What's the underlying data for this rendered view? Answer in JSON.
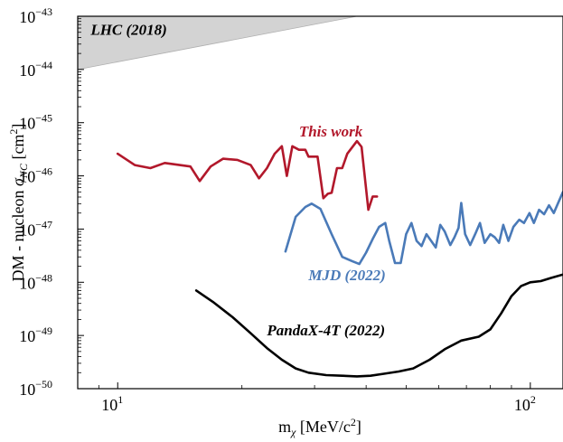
{
  "chart_data": {
    "type": "line",
    "xscale": "log",
    "yscale": "log",
    "xlim": [
      8,
      120
    ],
    "ylim": [
      1e-50,
      1e-43
    ],
    "xlabel": "m_χ [MeV/c²]",
    "ylabel": "DM - nucleon σ_NC [cm²]",
    "x_ticks": [
      {
        "value": 10,
        "base": "10",
        "exp": "1"
      },
      {
        "value": 100,
        "base": "10",
        "exp": "2"
      }
    ],
    "y_ticks": [
      {
        "value": 1e-50,
        "base": "10",
        "exp": "−50"
      },
      {
        "value": 1e-49,
        "base": "10",
        "exp": "−49"
      },
      {
        "value": 1e-48,
        "base": "10",
        "exp": "−48"
      },
      {
        "value": 1e-47,
        "base": "10",
        "exp": "−47"
      },
      {
        "value": 1e-46,
        "base": "10",
        "exp": "−46"
      },
      {
        "value": 1e-45,
        "base": "10",
        "exp": "−45"
      },
      {
        "value": 1e-44,
        "base": "10",
        "exp": "−44"
      },
      {
        "value": 1e-43,
        "base": "10",
        "exp": "−43"
      }
    ],
    "regions": [
      {
        "name": "LHC (2018)",
        "color": "#d3d3d3",
        "boundary": [
          [
            8,
            1e-44
          ],
          [
            38,
            1e-43
          ]
        ]
      }
    ],
    "series": [
      {
        "name": "This work",
        "color": "#b2182b",
        "points": [
          [
            10.0,
            2.6e-46
          ],
          [
            11.0,
            1.6e-46
          ],
          [
            12.0,
            1.4e-46
          ],
          [
            13.0,
            1.75e-46
          ],
          [
            15.0,
            1.5e-46
          ],
          [
            15.8,
            8e-47
          ],
          [
            16.8,
            1.5e-46
          ],
          [
            18.0,
            2.1e-46
          ],
          [
            19.5,
            2e-46
          ],
          [
            21.0,
            1.6e-46
          ],
          [
            22.0,
            9e-47
          ],
          [
            23.0,
            1.4e-46
          ],
          [
            24.0,
            2.6e-46
          ],
          [
            25.0,
            3.6e-46
          ],
          [
            25.7,
            1e-46
          ],
          [
            26.5,
            3.6e-46
          ],
          [
            27.5,
            3.1e-46
          ],
          [
            28.5,
            3.1e-46
          ],
          [
            29.0,
            2.3e-46
          ],
          [
            30.5,
            2.3e-46
          ],
          [
            31.5,
            3.8e-47
          ],
          [
            32.3,
            4.6e-47
          ],
          [
            33.0,
            4.8e-47
          ],
          [
            34.0,
            1.4e-46
          ],
          [
            35.0,
            1.4e-46
          ],
          [
            36.0,
            2.6e-46
          ],
          [
            38.0,
            4.5e-46
          ],
          [
            39.0,
            3.5e-46
          ],
          [
            40.5,
            2.3e-47
          ],
          [
            41.5,
            4.1e-47
          ],
          [
            42.5,
            4.1e-47
          ]
        ]
      },
      {
        "name": "MJD (2022)",
        "color": "#4a7ab8",
        "points": [
          [
            25.5,
            3.8e-48
          ],
          [
            27.0,
            1.7e-47
          ],
          [
            28.5,
            2.6e-47
          ],
          [
            29.5,
            3e-47
          ],
          [
            31.0,
            2.4e-47
          ],
          [
            33.0,
            8e-48
          ],
          [
            35.0,
            3e-48
          ],
          [
            37.0,
            2.5e-48
          ],
          [
            38.5,
            2.2e-48
          ],
          [
            40.0,
            3.6e-48
          ],
          [
            41.5,
            6.5e-48
          ],
          [
            43.0,
            1.1e-47
          ],
          [
            44.5,
            1.3e-47
          ],
          [
            45.5,
            6e-48
          ],
          [
            47.0,
            2.3e-48
          ],
          [
            48.5,
            2.3e-48
          ],
          [
            50.0,
            8e-48
          ],
          [
            51.5,
            1.3e-47
          ],
          [
            53.0,
            6e-48
          ],
          [
            54.5,
            4.8e-48
          ],
          [
            56.0,
            8e-48
          ],
          [
            57.5,
            6e-48
          ],
          [
            59.0,
            4.5e-48
          ],
          [
            60.5,
            1.2e-47
          ],
          [
            62.0,
            9e-48
          ],
          [
            64.0,
            5e-48
          ],
          [
            65.5,
            7e-48
          ],
          [
            67.0,
            1.05e-47
          ],
          [
            68.0,
            3.1e-47
          ],
          [
            69.5,
            8e-48
          ],
          [
            71.5,
            5e-48
          ],
          [
            73.5,
            8e-48
          ],
          [
            75.5,
            1.3e-47
          ],
          [
            77.5,
            5.5e-48
          ],
          [
            80.0,
            8e-48
          ],
          [
            82.0,
            7e-48
          ],
          [
            84.0,
            5.5e-48
          ],
          [
            86.0,
            1.2e-47
          ],
          [
            88.5,
            6e-48
          ],
          [
            91.0,
            1.1e-47
          ],
          [
            94.0,
            1.5e-47
          ],
          [
            96.5,
            1.3e-47
          ],
          [
            99.5,
            2e-47
          ],
          [
            102.0,
            1.3e-47
          ],
          [
            105.0,
            2.3e-47
          ],
          [
            108.0,
            1.9e-47
          ],
          [
            111.0,
            2.8e-47
          ],
          [
            114.0,
            2e-47
          ],
          [
            117.0,
            3.2e-47
          ],
          [
            120.0,
            5e-47
          ]
        ]
      },
      {
        "name": "PandaX-4T (2022)",
        "color": "#000000",
        "points": [
          [
            15.5,
            7e-49
          ],
          [
            17.0,
            4.3e-49
          ],
          [
            19.0,
            2.2e-49
          ],
          [
            21.0,
            1.1e-49
          ],
          [
            23.0,
            5.8e-50
          ],
          [
            25.0,
            3.5e-50
          ],
          [
            27.0,
            2.4e-50
          ],
          [
            29.0,
            2e-50
          ],
          [
            32.0,
            1.8e-50
          ],
          [
            35.0,
            1.75e-50
          ],
          [
            38.0,
            1.7e-50
          ],
          [
            41.0,
            1.75e-50
          ],
          [
            44.0,
            1.9e-50
          ],
          [
            48.0,
            2.1e-50
          ],
          [
            52.0,
            2.4e-50
          ],
          [
            57.0,
            3.5e-50
          ],
          [
            62.0,
            5.5e-50
          ],
          [
            68.0,
            8e-50
          ],
          [
            75.0,
            9.5e-50
          ],
          [
            80.0,
            1.3e-49
          ],
          [
            85.0,
            2.6e-49
          ],
          [
            90.0,
            5.5e-49
          ],
          [
            95.0,
            8.5e-49
          ],
          [
            100.0,
            1e-48
          ],
          [
            106.0,
            1.05e-48
          ],
          [
            112.0,
            1.2e-48
          ],
          [
            120.0,
            1.4e-48
          ]
        ]
      }
    ],
    "annotations": [
      {
        "text": "LHC (2018)",
        "color": "#000000",
        "x": 8.6,
        "y": 4.5e-44
      },
      {
        "text": "This work",
        "color": "#b2182b",
        "x": 27.5,
        "y": 5.5e-46
      },
      {
        "text": "MJD (2022)",
        "color": "#4a7ab8",
        "x": 29.0,
        "y": 1.1e-48
      },
      {
        "text": "PandaX-4T (2022)",
        "color": "#000000",
        "x": 23.0,
        "y": 1e-49
      }
    ]
  }
}
